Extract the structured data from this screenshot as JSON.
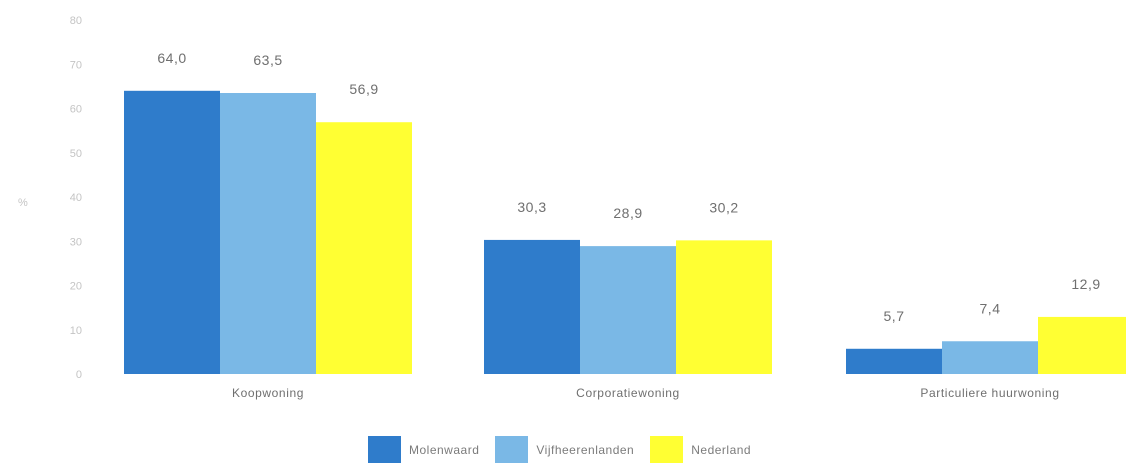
{
  "chart_data": {
    "type": "bar",
    "categories": [
      "Koopwoning",
      "Corporatiewoning",
      "Particuliere huurwoning"
    ],
    "series": [
      {
        "name": "Molenwaard",
        "color": "#2f7ccb",
        "values": [
          64.0,
          30.3,
          5.7
        ]
      },
      {
        "name": "Vijfheerenlanden",
        "color": "#7ab8e6",
        "values": [
          63.5,
          28.9,
          7.4
        ]
      },
      {
        "name": "Nederland",
        "color": "#ffff33",
        "values": [
          56.9,
          30.2,
          12.9
        ]
      }
    ],
    "value_labels": [
      [
        "64,0",
        "30,3",
        "5,7"
      ],
      [
        "63,5",
        "28,9",
        "7,4"
      ],
      [
        "56,9",
        "30,2",
        "12,9"
      ]
    ],
    "ylabel": "%",
    "ylim": [
      0,
      80
    ],
    "yticks": [
      0,
      10,
      20,
      30,
      40,
      50,
      60,
      70,
      80
    ],
    "grid": false,
    "legend": "bottom-center"
  }
}
